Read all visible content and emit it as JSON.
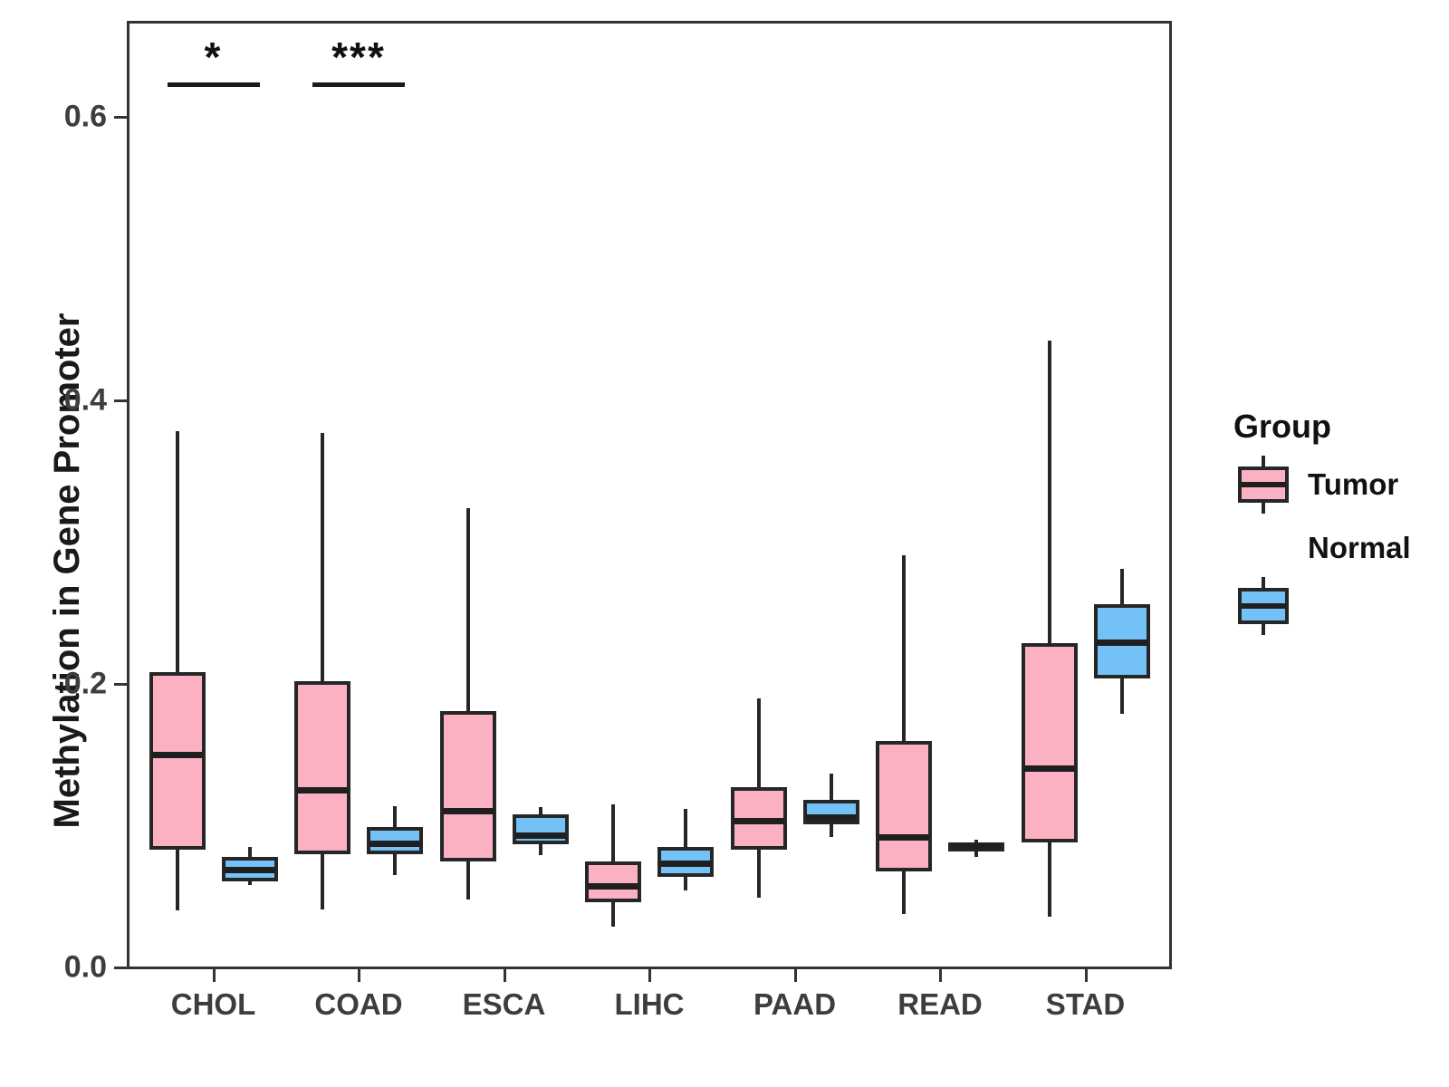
{
  "chart_data": {
    "type": "boxplot",
    "title": "",
    "xlabel": "",
    "ylabel": "Methylation in Gene Promoter",
    "categories": [
      "CHOL",
      "COAD",
      "ESCA",
      "LIHC",
      "PAAD",
      "READ",
      "STAD"
    ],
    "y_ticks": [
      {
        "value": 0.0,
        "label": "0.0"
      },
      {
        "value": 0.2,
        "label": "0.2"
      },
      {
        "value": 0.4,
        "label": "0.4"
      },
      {
        "value": 0.6,
        "label": "0.6"
      }
    ],
    "ylim": [
      0,
      0.667
    ],
    "grid": "off",
    "legend": {
      "title": "Group",
      "position": "right",
      "entries": [
        {
          "label": "Tumor",
          "color": "#FBB1C2"
        },
        {
          "label": "Normal",
          "color": "#74C1F7"
        }
      ]
    },
    "series": [
      {
        "name": "Tumor",
        "color": "#FBB1C2",
        "boxes": [
          {
            "category": "CHOL",
            "whisker_low": 0.04,
            "q1": 0.083,
            "median": 0.15,
            "q3": 0.208,
            "whisker_high": 0.378
          },
          {
            "category": "COAD",
            "whisker_low": 0.041,
            "q1": 0.08,
            "median": 0.125,
            "q3": 0.202,
            "whisker_high": 0.377
          },
          {
            "category": "ESCA",
            "whisker_low": 0.048,
            "q1": 0.075,
            "median": 0.11,
            "q3": 0.181,
            "whisker_high": 0.324
          },
          {
            "category": "LIHC",
            "whisker_low": 0.029,
            "q1": 0.046,
            "median": 0.057,
            "q3": 0.075,
            "whisker_high": 0.115
          },
          {
            "category": "PAAD",
            "whisker_low": 0.049,
            "q1": 0.083,
            "median": 0.103,
            "q3": 0.127,
            "whisker_high": 0.19
          },
          {
            "category": "READ",
            "whisker_low": 0.038,
            "q1": 0.068,
            "median": 0.092,
            "q3": 0.16,
            "whisker_high": 0.291
          },
          {
            "category": "STAD",
            "whisker_low": 0.036,
            "q1": 0.088,
            "median": 0.14,
            "q3": 0.229,
            "whisker_high": 0.442
          }
        ]
      },
      {
        "name": "Normal",
        "color": "#74C1F7",
        "boxes": [
          {
            "category": "CHOL",
            "whisker_low": 0.058,
            "q1": 0.061,
            "median": 0.069,
            "q3": 0.078,
            "whisker_high": 0.085
          },
          {
            "category": "COAD",
            "whisker_low": 0.065,
            "q1": 0.08,
            "median": 0.087,
            "q3": 0.099,
            "whisker_high": 0.114
          },
          {
            "category": "ESCA",
            "whisker_low": 0.079,
            "q1": 0.087,
            "median": 0.093,
            "q3": 0.108,
            "whisker_high": 0.113
          },
          {
            "category": "LIHC",
            "whisker_low": 0.054,
            "q1": 0.064,
            "median": 0.073,
            "q3": 0.085,
            "whisker_high": 0.112
          },
          {
            "category": "PAAD",
            "whisker_low": 0.092,
            "q1": 0.101,
            "median": 0.106,
            "q3": 0.118,
            "whisker_high": 0.137
          },
          {
            "category": "READ",
            "whisker_low": 0.078,
            "q1": 0.082,
            "median": 0.085,
            "q3": 0.088,
            "whisker_high": 0.09
          },
          {
            "category": "STAD",
            "whisker_low": 0.179,
            "q1": 0.204,
            "median": 0.229,
            "q3": 0.256,
            "whisker_high": 0.281
          }
        ]
      }
    ],
    "annotations": [
      {
        "category": "CHOL",
        "label": "*"
      },
      {
        "category": "COAD",
        "label": "***"
      }
    ]
  }
}
